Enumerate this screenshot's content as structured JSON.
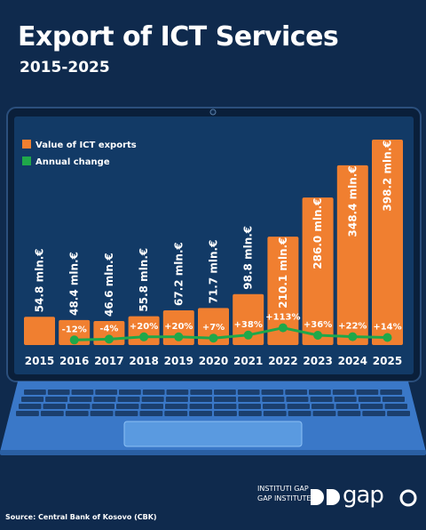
{
  "header": {
    "title": "Export of ICT Services",
    "subtitle": "2015-2025"
  },
  "footer": {
    "source": "Source: Central Bank of Kosovo (CBK)",
    "logo_line1": "INSTITUTI GAP",
    "logo_line2": "GAP INSTITUTE",
    "logo_word": "gap"
  },
  "colors": {
    "background": "#0f2a4d",
    "screen": "#123a66",
    "bar": "#f07f30",
    "line": "#1fa84a",
    "text": "#ffffff",
    "keyboard": "#3a78c8"
  },
  "chart_data": {
    "type": "bar",
    "categories": [
      "2015",
      "2016",
      "2017",
      "2018",
      "2019",
      "2020",
      "2021",
      "2022",
      "2023",
      "2024",
      "2025"
    ],
    "series": [
      {
        "name": "Value of ICT exports",
        "type": "bar",
        "values": [
          54.8,
          48.4,
          46.6,
          55.8,
          67.2,
          71.7,
          98.8,
          210.1,
          286.0,
          348.4,
          398.2
        ],
        "labels": [
          "54.8 mln.€",
          "48.4 mln.€",
          "46.6 mln.€",
          "55.8 mln.€",
          "67.2 mln.€",
          "71.7 mln.€",
          "98.8 mln.€",
          "210.1 mln.€",
          "286.0 mln.€",
          "348.4 mln.€",
          "398.2 mln.€"
        ]
      },
      {
        "name": "Annual change",
        "type": "line",
        "values": [
          null,
          -12,
          -4,
          20,
          20,
          7,
          38,
          113,
          36,
          22,
          14
        ],
        "labels": [
          "",
          "-12%",
          "-4%",
          "+20%",
          "+20%",
          "+7%",
          "+38%",
          "+113%",
          "+36%",
          "+22%",
          "+14%"
        ]
      }
    ],
    "ylim": [
      0,
      400
    ],
    "legend": "top-left",
    "grid": false
  }
}
